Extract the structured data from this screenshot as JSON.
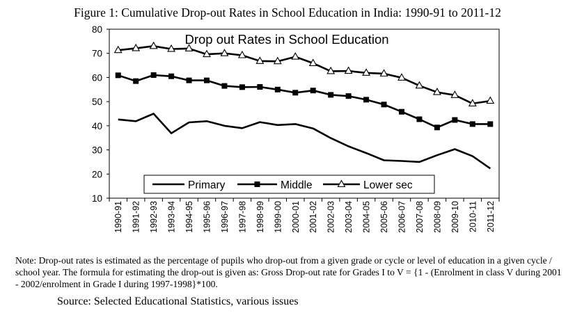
{
  "figure_title": "Figure 1: Cumulative Drop-out Rates in School Education in India: 1990-91 to 2011-12",
  "note": "Note: Drop-out rates is estimated as the percentage of pupils who drop-out from a given grade or cycle or level of education in a given cycle / school year. The formula for estimating the drop-out is given as: Gross Drop-out rate for Grades I to V = {1 - (Enrolment in class V during 2001 - 2002/enrolment in Grade I during 1997-1998}*100.",
  "source": "Source: Selected Educational Statistics, various issues",
  "chart_data": {
    "type": "line",
    "title": "Drop out Rates in School Education",
    "xlabel": "",
    "ylabel": "",
    "ylim": [
      10,
      80
    ],
    "yticks": [
      10,
      20,
      30,
      40,
      50,
      60,
      70,
      80
    ],
    "grid": false,
    "legend_position": "bottom-center",
    "categories": [
      "1990-91",
      "1991-92",
      "1992-93",
      "1993-94",
      "1994-95",
      "1995-96",
      "1996-97",
      "1997-98",
      "1998-99",
      "1999-00",
      "2000-01",
      "2001-02",
      "2002-03",
      "2003-04",
      "2004-05",
      "2005-06",
      "2006-07",
      "2007-08",
      "2008-09",
      "2009-10",
      "2010-11",
      "2011-12"
    ],
    "series": [
      {
        "name": "Primary",
        "marker": "none",
        "values": [
          42.6,
          41.9,
          45.0,
          36.9,
          41.4,
          41.9,
          40.0,
          39.0,
          41.5,
          40.3,
          40.7,
          38.9,
          34.9,
          31.5,
          28.7,
          25.7,
          25.4,
          25.0,
          27.8,
          30.3,
          27.4,
          22.3
        ]
      },
      {
        "name": "Middle",
        "marker": "square",
        "values": [
          60.9,
          58.5,
          61.0,
          60.5,
          58.8,
          58.8,
          56.5,
          56.0,
          56.1,
          55.0,
          53.7,
          54.6,
          52.8,
          52.3,
          50.8,
          48.8,
          45.8,
          42.7,
          39.3,
          42.4,
          40.7,
          40.7
        ]
      },
      {
        "name": "Lower sec",
        "marker": "triangle",
        "values": [
          71.3,
          72.1,
          73.0,
          71.8,
          72.0,
          69.6,
          70.0,
          69.2,
          66.8,
          66.7,
          68.6,
          65.9,
          62.6,
          62.7,
          61.9,
          61.6,
          59.9,
          56.6,
          53.9,
          52.7,
          49.2,
          50.3
        ]
      }
    ]
  }
}
